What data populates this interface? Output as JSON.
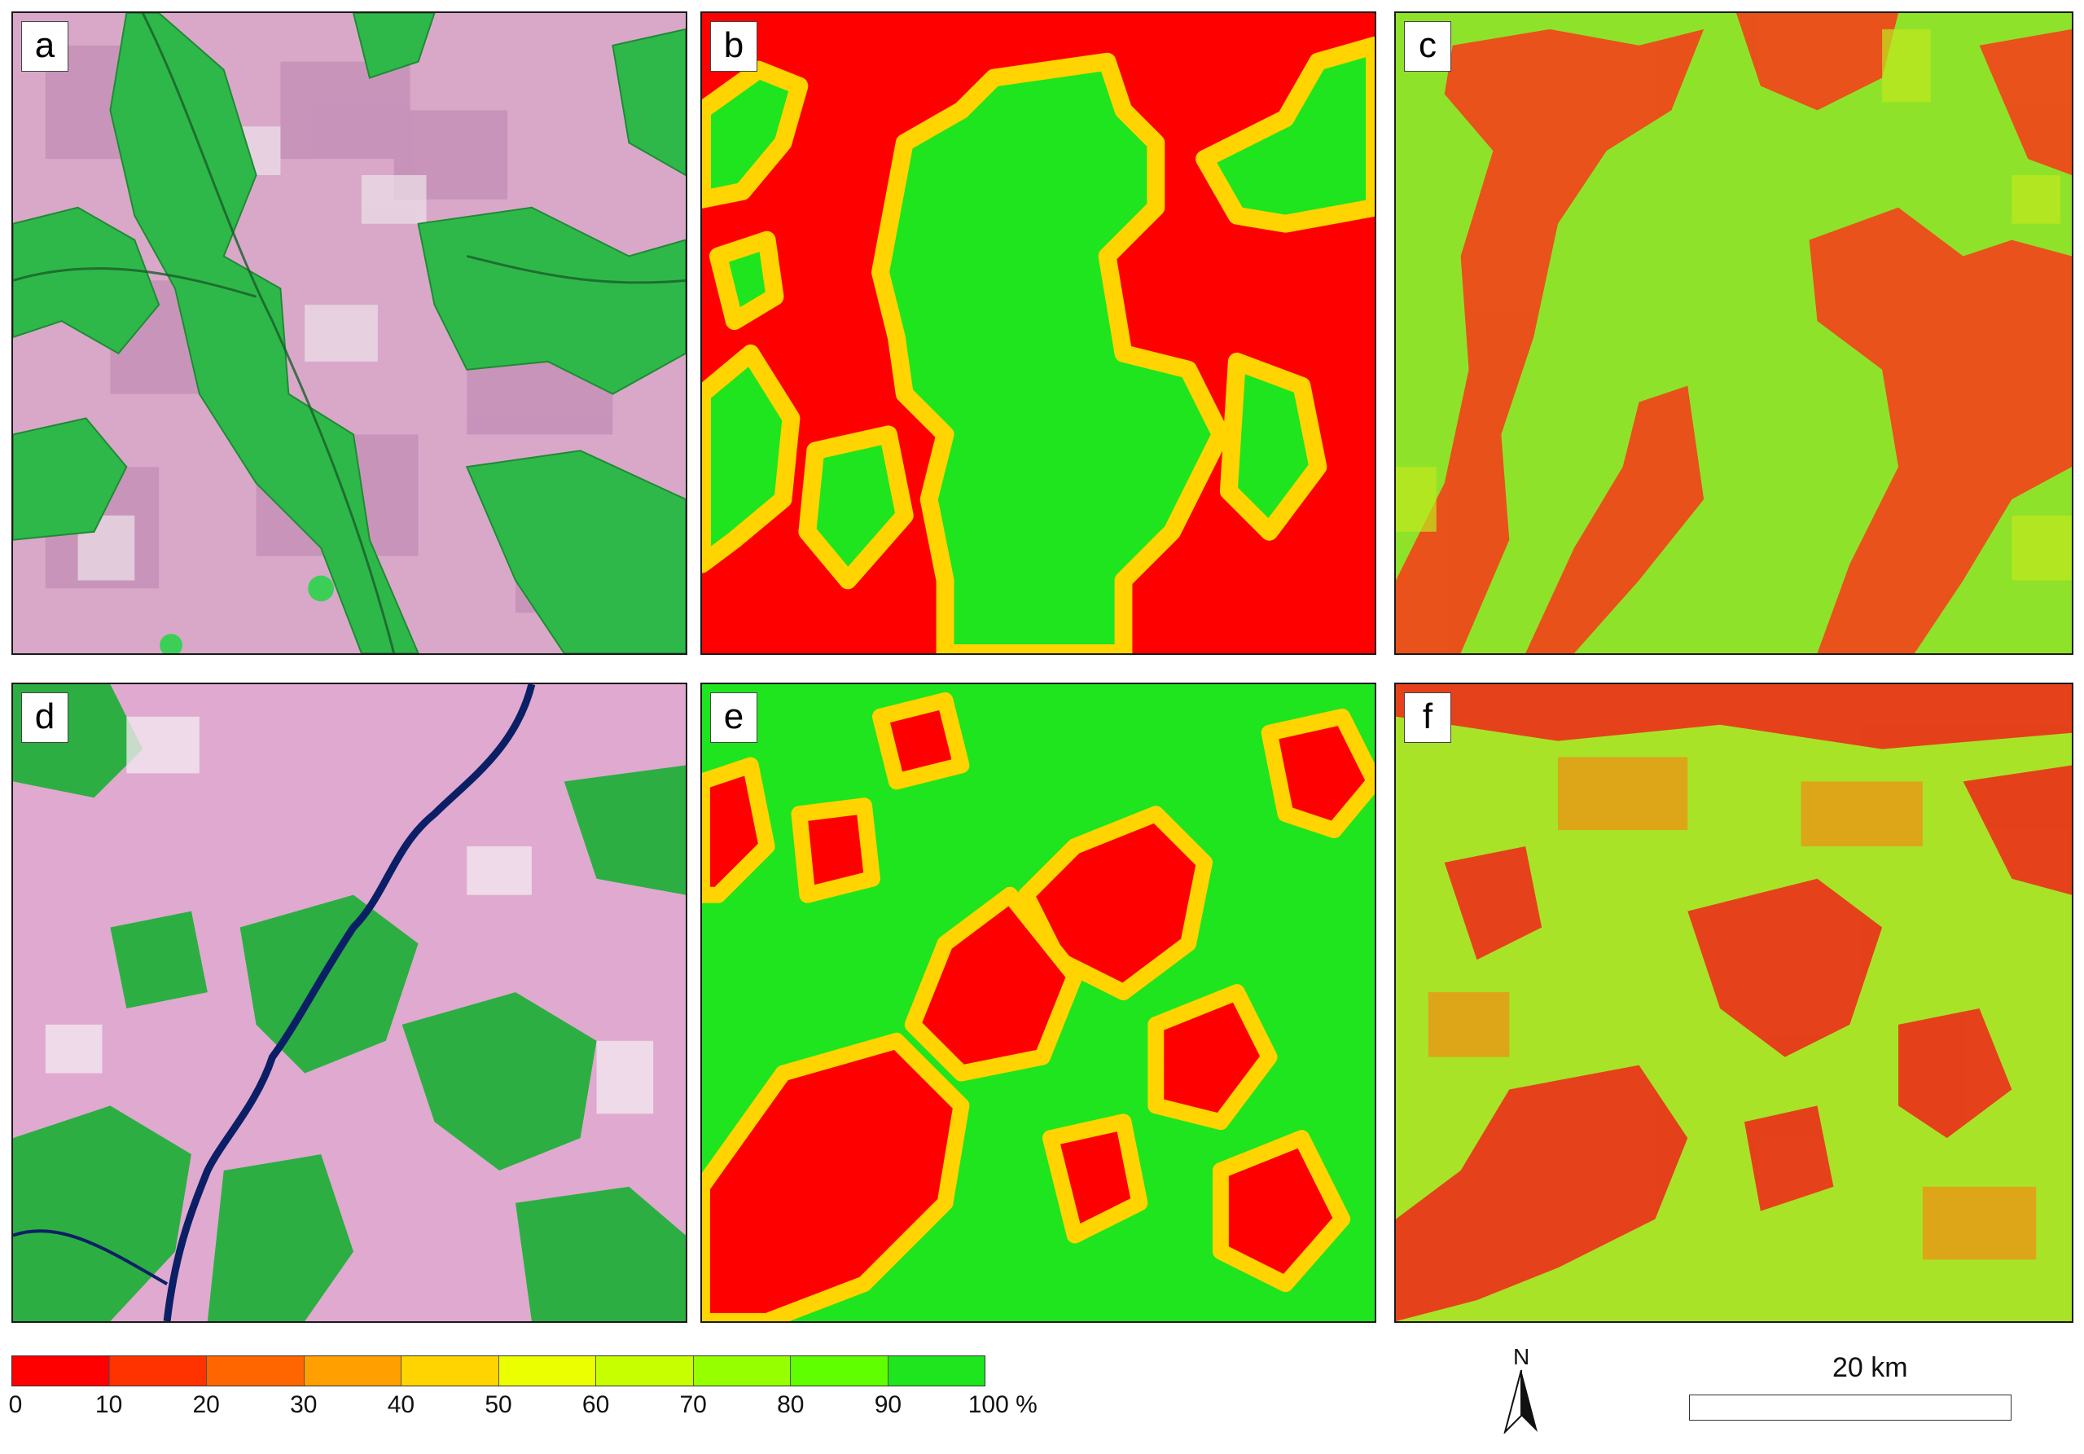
{
  "panels": [
    {
      "id": "a",
      "label": "a",
      "kind": "satellite"
    },
    {
      "id": "b",
      "label": "b",
      "kind": "forest_cover_smooth"
    },
    {
      "id": "c",
      "label": "c",
      "kind": "forest_cover_noisy"
    },
    {
      "id": "d",
      "label": "d",
      "kind": "satellite_river"
    },
    {
      "id": "e",
      "label": "e",
      "kind": "forest_cover_smooth"
    },
    {
      "id": "f",
      "label": "f",
      "kind": "forest_cover_noisy"
    }
  ],
  "legend": {
    "colors": [
      "#ff0000",
      "#ff3300",
      "#ff6600",
      "#ffa000",
      "#ffd400",
      "#ecff00",
      "#c8ff00",
      "#96ff00",
      "#5fff00",
      "#1ee51e"
    ],
    "ticks": [
      "0",
      "10",
      "20",
      "30",
      "40",
      "50",
      "60",
      "70",
      "80",
      "90",
      "100 %"
    ]
  },
  "north_label": "N",
  "scale_label": "20  km"
}
